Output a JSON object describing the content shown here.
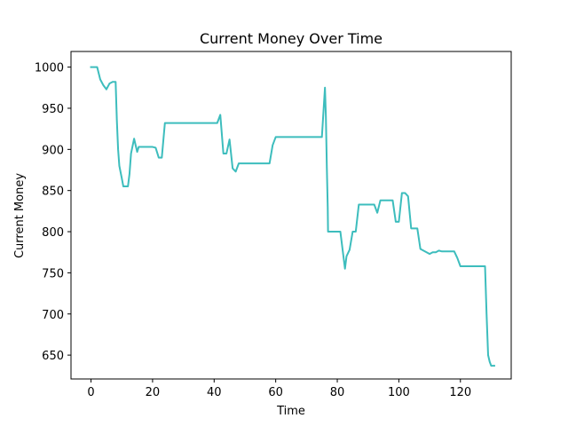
{
  "chart_data": {
    "type": "line",
    "title": "Current Money Over Time",
    "xlabel": "Time",
    "ylabel": "Current Money",
    "xlim": [
      -6.5,
      136.5
    ],
    "ylim": [
      621,
      1019
    ],
    "xticks": [
      0,
      20,
      40,
      60,
      80,
      100,
      120
    ],
    "yticks": [
      650,
      700,
      750,
      800,
      850,
      900,
      950,
      1000
    ],
    "grid": false,
    "series": [
      {
        "color": "#3dbdbd",
        "points": [
          [
            0,
            1000
          ],
          [
            2,
            1000
          ],
          [
            3,
            985
          ],
          [
            4,
            978
          ],
          [
            5,
            973
          ],
          [
            6,
            980
          ],
          [
            7,
            982
          ],
          [
            8,
            982
          ],
          [
            8.4,
            935
          ],
          [
            8.8,
            900
          ],
          [
            9.2,
            880
          ],
          [
            10,
            865
          ],
          [
            10.5,
            855
          ],
          [
            12,
            855
          ],
          [
            12.5,
            870
          ],
          [
            13,
            895
          ],
          [
            14,
            913
          ],
          [
            15,
            897
          ],
          [
            15.5,
            903
          ],
          [
            20,
            903
          ],
          [
            21,
            902
          ],
          [
            22,
            890
          ],
          [
            23,
            890
          ],
          [
            24,
            932
          ],
          [
            41,
            932
          ],
          [
            42,
            942
          ],
          [
            43,
            895
          ],
          [
            44,
            895
          ],
          [
            45,
            912
          ],
          [
            46,
            877
          ],
          [
            47,
            873
          ],
          [
            48,
            883
          ],
          [
            58,
            883
          ],
          [
            59,
            905
          ],
          [
            60,
            915
          ],
          [
            75,
            915
          ],
          [
            76,
            975
          ],
          [
            76.3,
            940
          ],
          [
            76.6,
            880
          ],
          [
            76.9,
            830
          ],
          [
            77,
            800
          ],
          [
            81,
            800
          ],
          [
            82,
            770
          ],
          [
            82.5,
            755
          ],
          [
            83,
            770
          ],
          [
            84,
            778
          ],
          [
            85,
            800
          ],
          [
            86,
            800
          ],
          [
            87,
            833
          ],
          [
            92,
            833
          ],
          [
            93,
            823
          ],
          [
            94,
            838
          ],
          [
            98,
            838
          ],
          [
            99,
            812
          ],
          [
            100,
            812
          ],
          [
            101,
            847
          ],
          [
            102,
            847
          ],
          [
            103,
            843
          ],
          [
            104,
            804
          ],
          [
            106,
            804
          ],
          [
            107,
            779
          ],
          [
            110,
            773
          ],
          [
            111,
            775
          ],
          [
            112,
            775
          ],
          [
            113,
            777
          ],
          [
            114,
            776
          ],
          [
            118,
            776
          ],
          [
            119,
            768
          ],
          [
            120,
            758
          ],
          [
            128,
            758
          ],
          [
            128.5,
            700
          ],
          [
            129,
            650
          ],
          [
            129.5,
            642
          ],
          [
            130,
            637
          ],
          [
            131,
            637
          ]
        ]
      }
    ]
  }
}
